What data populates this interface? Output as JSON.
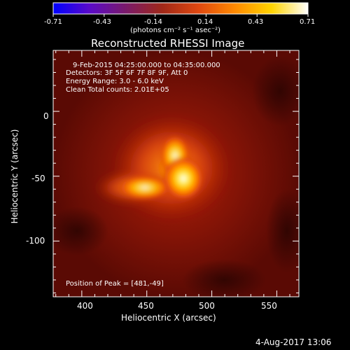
{
  "colorbar": {
    "ticks": [
      "-0.71",
      "-0.43",
      "-0.14",
      "0.14",
      "0.43",
      "0.71"
    ],
    "unit_label": "(photons cm⁻² s⁻¹ asec⁻²)",
    "colors": [
      "#0000ff",
      "#5a0ac8",
      "#7a1a6a",
      "#a02818",
      "#e04810",
      "#ff8a00",
      "#ffd400",
      "#ffffff"
    ]
  },
  "title": "Reconstructed RHESSI Image",
  "info": {
    "line1": "9-Feb-2015 04:25:00.000 to 04:35:00.000",
    "line2": "Detectors: 3F 5F 6F 7F 8F 9F, Att 0",
    "line3": "Energy Range: 3.0 - 6.0 keV",
    "line4": "Clean    Total counts: 2.01E+05"
  },
  "peak_label": "Position of Peak = [481,-49]",
  "x_axis": {
    "label": "Heliocentric X (arcsec)",
    "ticks": [
      400,
      450,
      500,
      550
    ],
    "range": [
      378,
      567
    ]
  },
  "y_axis": {
    "label": "Heliocentric Y (arcsec)",
    "ticks": [
      0,
      -50,
      -100
    ],
    "range": [
      -143,
      47
    ]
  },
  "source": {
    "peak_x": 481,
    "peak_y": -49
  },
  "timestamp": "4-Aug-2017 13:06"
}
